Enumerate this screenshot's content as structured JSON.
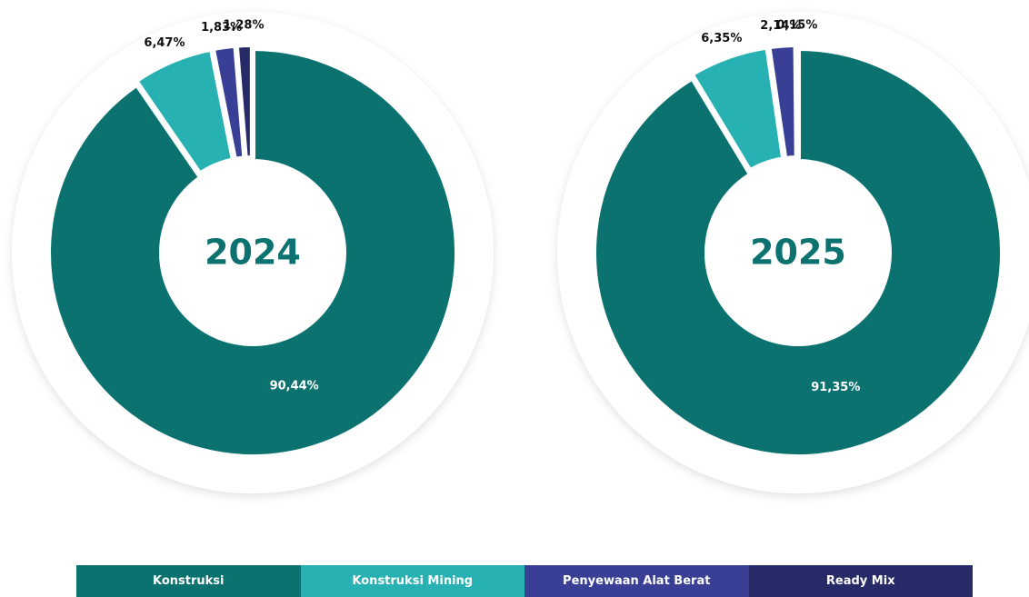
{
  "chart_data": [
    {
      "type": "donut",
      "title": "2024",
      "categories": [
        "Konstruksi",
        "Konstruksi Mining",
        "Penyewaan Alat Berat",
        "Ready Mix"
      ],
      "values": [
        90.44,
        6.47,
        1.83,
        1.28
      ],
      "value_labels": [
        "90,44%",
        "6,47%",
        "1,83%",
        "1,28%"
      ],
      "colors": [
        "#0b7270",
        "#27b1b3",
        "#3a3f96",
        "#262a66"
      ]
    },
    {
      "type": "donut",
      "title": "2025",
      "categories": [
        "Konstruksi",
        "Konstruksi Mining",
        "Penyewaan Alat Berat",
        "Ready Mix"
      ],
      "values": [
        91.35,
        6.35,
        2.14,
        0.15
      ],
      "value_labels": [
        "91,35%",
        "6,35%",
        "2,14%",
        "0,15%"
      ],
      "colors": [
        "#0b7270",
        "#27b1b3",
        "#3a3f96",
        "#262a66"
      ]
    }
  ]
}
